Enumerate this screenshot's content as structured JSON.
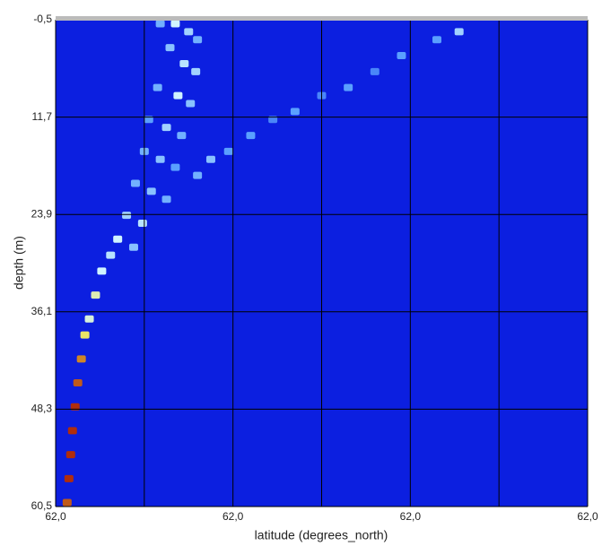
{
  "chart_data": {
    "type": "scatter",
    "x_label": "latitude (degrees_north)",
    "y_label": "depth (m)",
    "xlim": [
      61.97,
      62.03
    ],
    "ylim": [
      60.5,
      -0.5
    ],
    "xticks": [
      {
        "value": 61.97,
        "label": "62,0"
      },
      {
        "value": 61.98,
        "label": null
      },
      {
        "value": 61.99,
        "label": "62,0"
      },
      {
        "value": 62.0,
        "label": null
      },
      {
        "value": 62.01,
        "label": "62,0"
      },
      {
        "value": 62.02,
        "label": null
      },
      {
        "value": 62.03,
        "label": "62,0"
      }
    ],
    "yticks": [
      {
        "value": -0.5,
        "label": "-0,5"
      },
      {
        "value": 11.7,
        "label": "11,7"
      },
      {
        "value": 23.9,
        "label": "23,9"
      },
      {
        "value": 36.1,
        "label": "36,1"
      },
      {
        "value": 48.3,
        "label": "48,3"
      },
      {
        "value": 60.5,
        "label": "60,5"
      }
    ],
    "grid": true,
    "background": "#0c1fe0",
    "colormap": [
      "#0c1fe0",
      "#5aa0ff",
      "#d0f4ff",
      "#f0e040",
      "#a00000"
    ],
    "x": [
      61.9713,
      61.9715,
      61.9717,
      61.9719,
      61.9722,
      61.9725,
      61.9729,
      61.9733,
      61.9738,
      61.9745,
      61.9752,
      61.9818,
      61.9835,
      61.985,
      61.986,
      61.9829,
      61.9845,
      61.9858,
      61.9815,
      61.9838,
      61.9852,
      61.9805,
      61.9825,
      61.9842,
      61.98,
      61.9818,
      61.9835,
      61.979,
      61.9808,
      61.9825,
      61.978,
      61.9798,
      61.977,
      61.9788,
      61.9762,
      62.0155,
      62.013,
      62.009,
      62.006,
      62.003,
      62.0,
      61.997,
      61.9945,
      61.992,
      61.9895,
      61.9875,
      61.986
    ],
    "values": [
      60,
      57,
      54,
      51,
      48,
      45,
      42,
      39,
      37,
      34,
      31,
      0,
      0,
      1,
      2,
      3,
      5,
      6,
      8,
      9,
      10,
      12,
      13,
      14,
      16,
      17,
      18,
      20,
      21,
      22,
      24,
      25,
      27,
      28,
      29,
      1,
      2,
      4,
      6,
      8,
      9,
      11,
      12,
      14,
      16,
      17,
      19
    ],
    "density": [
      0.9,
      0.95,
      0.95,
      0.95,
      0.95,
      0.9,
      0.85,
      0.7,
      0.55,
      0.6,
      0.5,
      0.3,
      0.5,
      0.4,
      0.3,
      0.35,
      0.45,
      0.4,
      0.3,
      0.5,
      0.35,
      0.25,
      0.4,
      0.3,
      0.3,
      0.35,
      0.25,
      0.3,
      0.35,
      0.3,
      0.4,
      0.45,
      0.5,
      0.35,
      0.45,
      0.4,
      0.25,
      0.25,
      0.2,
      0.25,
      0.2,
      0.25,
      0.2,
      0.25,
      0.25,
      0.35,
      0.3
    ]
  }
}
